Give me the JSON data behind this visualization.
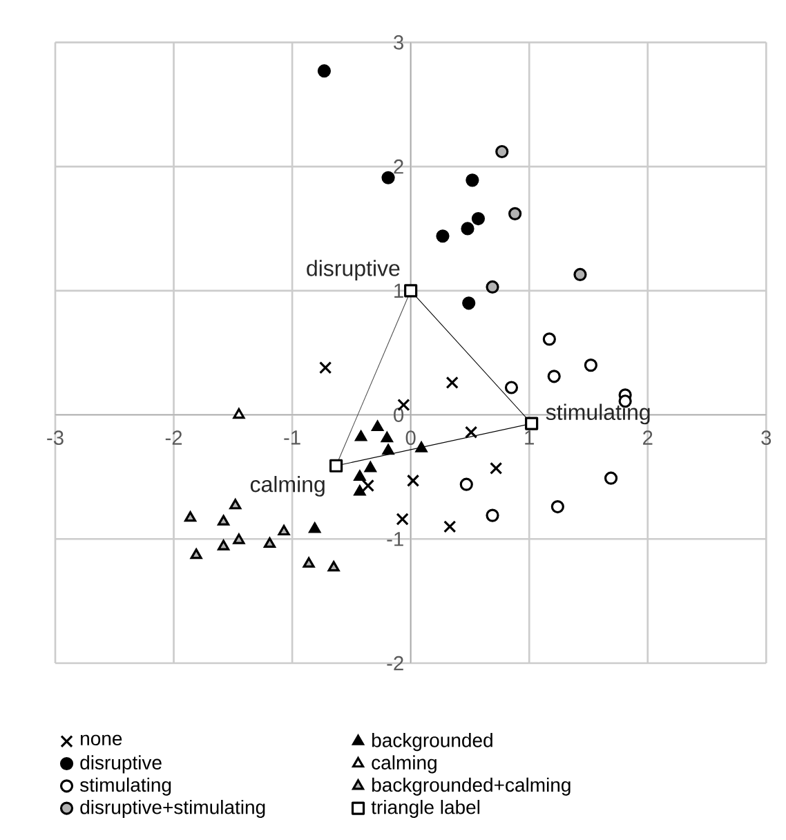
{
  "chart_data": {
    "type": "scatter",
    "xlim": [
      -3,
      3
    ],
    "ylim": [
      -2,
      3
    ],
    "xticks": [
      -3,
      -2,
      -1,
      0,
      1,
      2,
      3
    ],
    "yticks": [
      -2,
      -1,
      0,
      1,
      2,
      3
    ],
    "grid": true,
    "legend": "bottom",
    "series": [
      {
        "name": "none",
        "marker": "cross",
        "color": "#000000",
        "x": [
          0.35,
          -0.06,
          0.51,
          0.72,
          0.02,
          -0.07,
          0.33,
          -0.72,
          -0.36
        ],
        "values": [
          0.26,
          0.08,
          -0.14,
          -0.43,
          -0.53,
          -0.84,
          -0.9,
          0.38,
          -0.57
        ]
      },
      {
        "name": "disruptive",
        "marker": "circle",
        "color": "#000000",
        "x": [
          -0.73,
          -0.19,
          0.52,
          0.57,
          0.48,
          0.27,
          0.49
        ],
        "values": [
          2.77,
          1.91,
          1.89,
          1.58,
          1.5,
          1.44,
          0.9
        ]
      },
      {
        "name": "stimulating",
        "marker": "circle",
        "color": "#000000",
        "x": [
          1.17,
          1.21,
          1.52,
          0.85,
          1.81,
          1.81,
          0.47,
          1.69,
          0.69,
          1.24
        ],
        "values": [
          0.61,
          0.31,
          0.4,
          0.22,
          0.16,
          0.11,
          -0.56,
          -0.51,
          -0.81,
          -0.74
        ]
      },
      {
        "name": "disruptive+stimulating",
        "marker": "circle",
        "color": "#000000",
        "x": [
          0.77,
          0.88,
          0.69,
          1.43
        ],
        "values": [
          2.12,
          1.62,
          1.03,
          1.13
        ]
      },
      {
        "name": "backgrounded",
        "marker": "triangle",
        "color": "#000000",
        "x": [
          -0.42,
          -0.28,
          -0.2,
          -0.19,
          0.09,
          -0.34,
          -0.43,
          -0.43,
          -0.81
        ],
        "values": [
          -0.18,
          -0.1,
          -0.19,
          -0.29,
          -0.27,
          -0.43,
          -0.5,
          -0.62,
          -0.92
        ]
      },
      {
        "name": "calming",
        "marker": "triangle",
        "color": "#000000",
        "x": [
          -1.45
        ],
        "values": [
          0.0
        ]
      },
      {
        "name": "backgrounded+calming",
        "marker": "triangle",
        "color": "#000000",
        "x": [
          -1.48,
          -1.86,
          -1.58,
          -1.07,
          -1.19,
          -1.45,
          -1.58,
          -1.81,
          -0.86,
          -0.65
        ],
        "values": [
          -0.73,
          -0.83,
          -0.86,
          -0.94,
          -1.04,
          -1.01,
          -1.06,
          -1.13,
          -1.2,
          -1.23
        ]
      },
      {
        "name": "triangle label",
        "type": "line",
        "marker": "square",
        "color": "#000000",
        "x": [
          0,
          1.02,
          -0.63
        ],
        "values": [
          1,
          -0.07,
          -0.41
        ]
      }
    ],
    "annotations": [
      {
        "text": "disruptive",
        "x": 0,
        "y": 1
      },
      {
        "text": "stimulating",
        "x": 1.02,
        "y": -0.07
      },
      {
        "text": "calming",
        "x": -0.63,
        "y": -0.41
      }
    ]
  }
}
